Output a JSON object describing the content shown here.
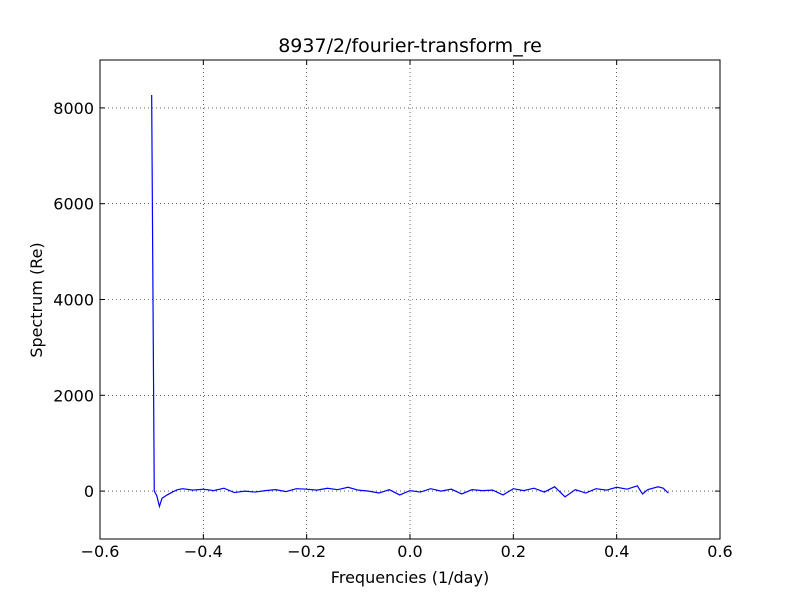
{
  "chart_data": {
    "type": "line",
    "title": "8937/2/fourier-transform_re",
    "x_label": "Frequencies (1/day)",
    "y_label": "Spectrum (Re)",
    "x": [
      -0.5,
      -0.495,
      -0.49,
      -0.485,
      -0.48,
      -0.47,
      -0.46,
      -0.45,
      -0.44,
      -0.42,
      -0.4,
      -0.38,
      -0.36,
      -0.34,
      -0.32,
      -0.3,
      -0.28,
      -0.26,
      -0.24,
      -0.22,
      -0.2,
      -0.18,
      -0.16,
      -0.14,
      -0.12,
      -0.1,
      -0.08,
      -0.06,
      -0.04,
      -0.02,
      0.0,
      0.02,
      0.04,
      0.06,
      0.08,
      0.1,
      0.12,
      0.14,
      0.16,
      0.18,
      0.2,
      0.22,
      0.24,
      0.26,
      0.28,
      0.3,
      0.32,
      0.34,
      0.36,
      0.38,
      0.4,
      0.42,
      0.44,
      0.45,
      0.46,
      0.48,
      0.49,
      0.5
    ],
    "series": [
      {
        "name": "spectrum",
        "color": "#0000ff",
        "values": [
          8270,
          0,
          -100,
          -320,
          -150,
          -80,
          -20,
          30,
          50,
          20,
          40,
          10,
          60,
          -30,
          0,
          -20,
          10,
          30,
          -10,
          50,
          40,
          20,
          60,
          30,
          80,
          20,
          0,
          -40,
          30,
          -80,
          10,
          -20,
          50,
          0,
          40,
          -60,
          30,
          10,
          20,
          -80,
          50,
          10,
          60,
          -20,
          90,
          -120,
          30,
          -40,
          50,
          20,
          80,
          40,
          110,
          -60,
          30,
          90,
          60,
          -40
        ]
      }
    ],
    "xlim": [
      -0.6,
      0.6
    ],
    "ylim": [
      -1000,
      9000
    ],
    "xticks": [
      {
        "value": -0.6,
        "label": "−0.6"
      },
      {
        "value": -0.4,
        "label": "−0.4"
      },
      {
        "value": -0.2,
        "label": "−0.2"
      },
      {
        "value": 0,
        "label": "0.0"
      },
      0.2,
      0.4,
      0.6
    ],
    "yticks": [
      0,
      2000,
      4000,
      6000,
      8000
    ],
    "grid": true
  }
}
